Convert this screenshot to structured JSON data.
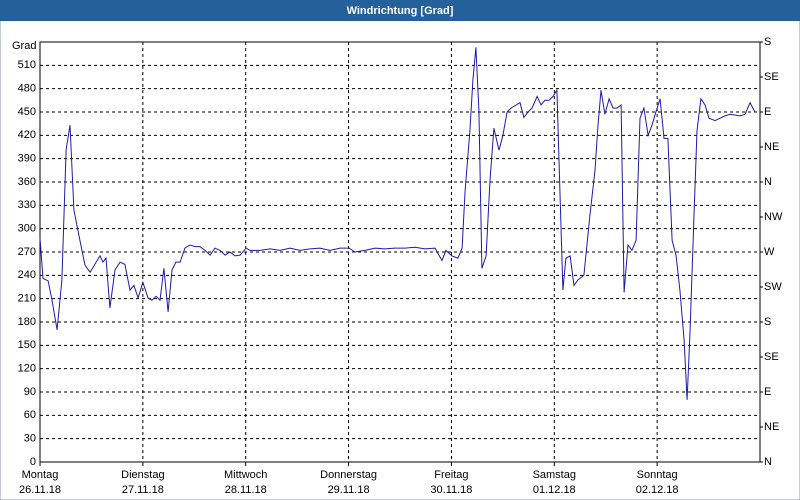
{
  "chart_data": {
    "type": "line",
    "title": "Windrichtung [Grad]",
    "y_label": "Grad",
    "xlim": [
      0,
      168
    ],
    "xticks": [
      {
        "value": 0,
        "label": [
          "Montag",
          "26.11.18"
        ]
      },
      {
        "value": 24,
        "label": [
          "Dienstag",
          "27.11.18"
        ]
      },
      {
        "value": 48,
        "label": [
          "Mittwoch",
          "28.11.18"
        ]
      },
      {
        "value": 72,
        "label": [
          "Donnerstag",
          "29.11.18"
        ]
      },
      {
        "value": 96,
        "label": [
          "Freitag",
          "30.11.18"
        ]
      },
      {
        "value": 120,
        "label": [
          "Samstag",
          "01.12.18"
        ]
      },
      {
        "value": 144,
        "label": [
          "Sonntag",
          "02.12.18"
        ]
      }
    ],
    "ylim": [
      0,
      540
    ],
    "yticks": [
      0,
      30,
      60,
      90,
      120,
      150,
      180,
      210,
      240,
      270,
      300,
      330,
      360,
      390,
      420,
      450,
      480,
      510
    ],
    "y2lim": [
      0,
      540
    ],
    "y2ticks": [
      {
        "value": 0,
        "label": "N"
      },
      {
        "value": 45,
        "label": "NE"
      },
      {
        "value": 90,
        "label": "E"
      },
      {
        "value": 135,
        "label": "SE"
      },
      {
        "value": 180,
        "label": "S"
      },
      {
        "value": 225,
        "label": "SW"
      },
      {
        "value": 270,
        "label": "W"
      },
      {
        "value": 315,
        "label": "NW"
      },
      {
        "value": 360,
        "label": "N"
      },
      {
        "value": 405,
        "label": "NE"
      },
      {
        "value": 450,
        "label": "E"
      },
      {
        "value": 495,
        "label": "SE"
      },
      {
        "value": 540,
        "label": "S"
      }
    ],
    "grid": true,
    "series": [
      {
        "color": "#1c1ca8",
        "x": [
          0,
          0.7,
          1.9,
          2.8,
          4,
          5.1,
          6.1,
          7,
          7.9,
          9.3,
          10.5,
          11.7,
          13.1,
          14,
          14.7,
          15.4,
          16.3,
          17.5,
          18.7,
          19.8,
          21,
          21.9,
          22.9,
          24,
          25.2,
          26.1,
          27.1,
          28,
          28.9,
          29.9,
          30.8,
          31.7,
          32.7,
          33.8,
          35,
          36.2,
          37.3,
          38.5,
          39.7,
          40.8,
          42,
          43.2,
          44.3,
          45.5,
          46.7,
          48.1,
          49,
          51.3,
          53.7,
          56,
          58.3,
          60.7,
          63,
          65.3,
          67.7,
          70,
          72.1,
          73.5,
          75.8,
          78.2,
          80.5,
          82.8,
          85.2,
          87.5,
          89.8,
          92.2,
          93.8,
          94.7,
          96.1,
          97.5,
          98.5,
          99.2,
          100.3,
          101,
          101.7,
          102.4,
          103.1,
          104.1,
          105,
          105.9,
          107.1,
          108,
          109,
          109.9,
          111.1,
          112,
          112.9,
          113.9,
          114.8,
          116,
          116.9,
          117.8,
          118.8,
          119.7,
          120.6,
          122,
          122.7,
          123.7,
          124.6,
          125.5,
          126.9,
          128.3,
          129.5,
          130.2,
          130.9,
          131.8,
          132.8,
          133.7,
          134.6,
          135.6,
          136.3,
          137.2,
          138.1,
          139.1,
          140,
          140.9,
          141.9,
          142.8,
          143.7,
          144.7,
          145.6,
          146.5,
          147.5,
          148.4,
          149.3,
          150.3,
          151,
          151.7,
          152.6,
          153.3,
          154.2,
          155.2,
          156.1,
          157.5,
          158.7,
          159.8,
          161,
          163.3,
          164.5,
          165.7,
          166.8
        ],
        "values": [
          288,
          236,
          233,
          208,
          170,
          234,
          401,
          433,
          324,
          285,
          253,
          244,
          257,
          265,
          257,
          262,
          198,
          247,
          257,
          254,
          221,
          227,
          211,
          231,
          211,
          208,
          213,
          208,
          249,
          193,
          247,
          257,
          257,
          275,
          279,
          277,
          277,
          272,
          266,
          275,
          272,
          266,
          270,
          265,
          266,
          275,
          272,
          272,
          274,
          272,
          275,
          272,
          274,
          275,
          272,
          275,
          275,
          270,
          272,
          275,
          274,
          275,
          275,
          276,
          274,
          275,
          259,
          272,
          265,
          262,
          275,
          349,
          426,
          491,
          533,
          452,
          249,
          265,
          362,
          429,
          401,
          420,
          450,
          455,
          459,
          462,
          443,
          450,
          455,
          470,
          459,
          465,
          465,
          470,
          478,
          221,
          262,
          265,
          227,
          234,
          240,
          317,
          375,
          433,
          478,
          447,
          467,
          455,
          455,
          459,
          218,
          279,
          272,
          285,
          442,
          455,
          420,
          433,
          450,
          467,
          416,
          416,
          285,
          266,
          221,
          157,
          80,
          170,
          317,
          426,
          467,
          459,
          442,
          439,
          442,
          445,
          447,
          445,
          447,
          462,
          450
        ]
      }
    ]
  }
}
